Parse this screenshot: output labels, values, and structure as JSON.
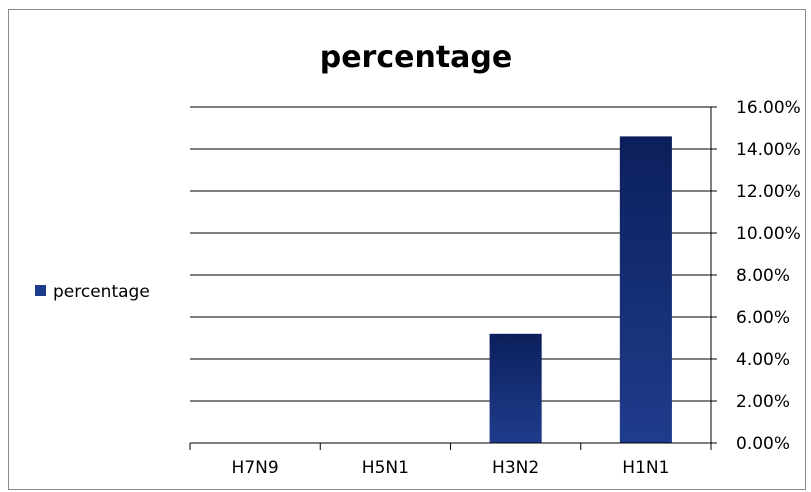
{
  "chart_data": {
    "type": "bar",
    "title": "percentage",
    "categories": [
      "H7N9",
      "H5N1",
      "H3N2",
      "H1N1"
    ],
    "series": [
      {
        "name": "percentage",
        "values": [
          0.0,
          0.0,
          5.2,
          14.6
        ]
      }
    ],
    "ylim": [
      0,
      16
    ],
    "yticks": [
      "0.00%",
      "2.00%",
      "4.00%",
      "6.00%",
      "8.00%",
      "10.00%",
      "12.00%",
      "14.00%",
      "16.00%"
    ],
    "y_axis_side": "right",
    "grid": true,
    "legend_position": "left",
    "bar_color": "#1f3c8c",
    "bar_color_dark": "#0c1f5c"
  }
}
